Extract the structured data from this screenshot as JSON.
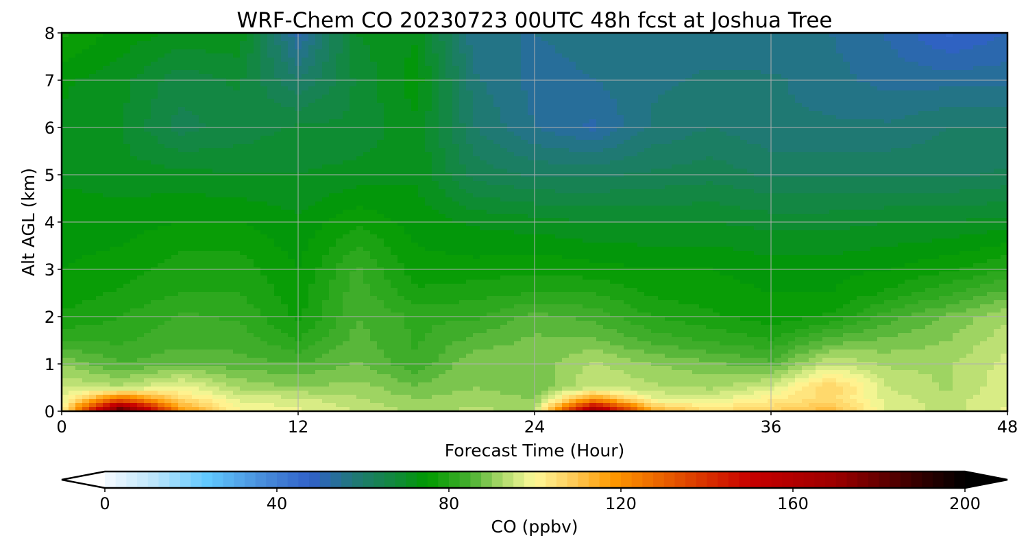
{
  "chart_data": {
    "type": "heatmap",
    "title": "WRF-Chem CO  20230723 00UTC 48h fcst at Joshua Tree",
    "xlabel": "Forecast Time (Hour)",
    "ylabel": "Alt AGL (km)",
    "xlim": [
      0,
      48
    ],
    "ylim": [
      0,
      8
    ],
    "xticks": [
      "0",
      "12",
      "24",
      "36",
      "48"
    ],
    "yticks": [
      "0",
      "1",
      "2",
      "3",
      "4",
      "5",
      "6",
      "7",
      "8"
    ],
    "grid": true,
    "x": [
      0,
      3,
      6,
      9,
      12,
      15,
      18,
      21,
      24,
      27,
      30,
      33,
      36,
      39,
      42,
      45,
      48
    ],
    "z": [
      0,
      0.25,
      0.5,
      1,
      1.5,
      2,
      2.5,
      3,
      4,
      5,
      6,
      7,
      8
    ],
    "values": [
      [
        98,
        190,
        120,
        100,
        98,
        95,
        92,
        93,
        92,
        170,
        115,
        105,
        108,
        112,
        97,
        94,
        98
      ],
      [
        97,
        130,
        106,
        97,
        96,
        93,
        90,
        92,
        90,
        120,
        98,
        97,
        102,
        106,
        96,
        94,
        97
      ],
      [
        95,
        93,
        99,
        92,
        90,
        91,
        88,
        90,
        88,
        95,
        93,
        92,
        96,
        108,
        95,
        92,
        97
      ],
      [
        90,
        85,
        87,
        86,
        85,
        88,
        83,
        90,
        88,
        93,
        90,
        88,
        86,
        95,
        92,
        92,
        96
      ],
      [
        82,
        82,
        84,
        84,
        80,
        86,
        82,
        86,
        88,
        88,
        84,
        82,
        80,
        86,
        88,
        90,
        94
      ],
      [
        78,
        80,
        83,
        82,
        77,
        85,
        82,
        82,
        86,
        84,
        80,
        78,
        76,
        78,
        84,
        88,
        92
      ],
      [
        76,
        78,
        80,
        80,
        76,
        84,
        78,
        79,
        80,
        80,
        77,
        76,
        75,
        75,
        78,
        82,
        86
      ],
      [
        75,
        76,
        79,
        79,
        75,
        83,
        76,
        76,
        77,
        76,
        75,
        75,
        74,
        74,
        75,
        77,
        80
      ],
      [
        74,
        74,
        75,
        75,
        73,
        77,
        74,
        72,
        71,
        70,
        70,
        70,
        69,
        69,
        70,
        70,
        71
      ],
      [
        72,
        71,
        71,
        70,
        70,
        71,
        72,
        64,
        62,
        62,
        63,
        64,
        62,
        62,
        62,
        62,
        63
      ],
      [
        72,
        70,
        64,
        66,
        68,
        68,
        72,
        60,
        55,
        52,
        58,
        60,
        58,
        58,
        58,
        60,
        60
      ],
      [
        73,
        71,
        66,
        68,
        60,
        68,
        74,
        58,
        54,
        55,
        57,
        58,
        58,
        56,
        54,
        54,
        54
      ],
      [
        78,
        74,
        72,
        72,
        52,
        70,
        72,
        55,
        55,
        56,
        56,
        56,
        55,
        55,
        52,
        47,
        50
      ]
    ],
    "colorbar": {
      "label": "CO  (ppbv)",
      "range": [
        0,
        200
      ],
      "step": 2.5,
      "extend": "both",
      "ticks": [
        "0",
        "40",
        "80",
        "120",
        "160",
        "200"
      ],
      "stops": [
        [
          0,
          "#f5faff"
        ],
        [
          12,
          "#b8e4fb"
        ],
        [
          24,
          "#60c8ff"
        ],
        [
          36,
          "#4a90dc"
        ],
        [
          48,
          "#3060c8"
        ],
        [
          58,
          "#207878"
        ],
        [
          68,
          "#108a38"
        ],
        [
          75,
          "#009a00"
        ],
        [
          85,
          "#48b030"
        ],
        [
          92,
          "#a8d868"
        ],
        [
          97,
          "#e0f08a"
        ],
        [
          100,
          "#fff898"
        ],
        [
          108,
          "#ffd060"
        ],
        [
          118,
          "#ff9a00"
        ],
        [
          135,
          "#e04800"
        ],
        [
          150,
          "#c80000"
        ],
        [
          170,
          "#9c0000"
        ],
        [
          190,
          "#300000"
        ],
        [
          200,
          "#000000"
        ]
      ]
    }
  }
}
